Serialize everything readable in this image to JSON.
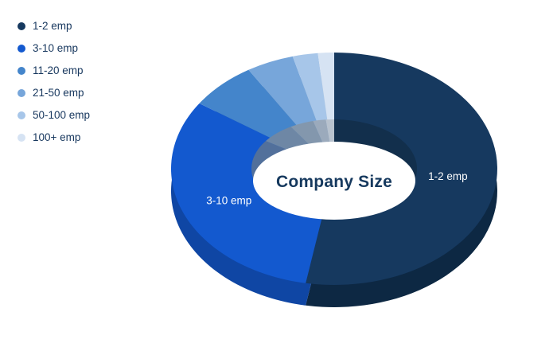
{
  "chart_data": {
    "type": "pie",
    "variant": "donut-3d",
    "title": "Company Size",
    "legend_position": "top-left",
    "background": "#ffffff",
    "start_angle_deg": 0,
    "direction": "clockwise",
    "categories": [
      "1-2 emp",
      "3-10 emp",
      "11-20 emp",
      "21-50 emp",
      "50-100 emp",
      "100+ emp"
    ],
    "values": [
      52.8,
      31.7,
      6.7,
      4.7,
      2.5,
      1.6
    ],
    "values_unit": "percent",
    "colors": [
      "#16395F",
      "#1359CF",
      "#4485CB",
      "#77A6DA",
      "#A7C6E9",
      "#D6E3F3"
    ],
    "side_colors": [
      "#0D2843",
      "#0F46A4",
      "#35689F",
      "#5E83AC",
      "#8BA4C0",
      "#B4C1D1"
    ],
    "wall_colors": [
      "#122F4C",
      "#52709B",
      "#6E87A5",
      "#8397AD",
      "#9BAABC",
      "#B8C2CE"
    ],
    "slice_callouts": [
      "1-2 emp",
      "3-10 emp",
      null,
      null,
      null,
      null
    ],
    "callout_text_color": "#ffffff",
    "legend_text_color": "#17375E",
    "title_color": "#16395E"
  }
}
